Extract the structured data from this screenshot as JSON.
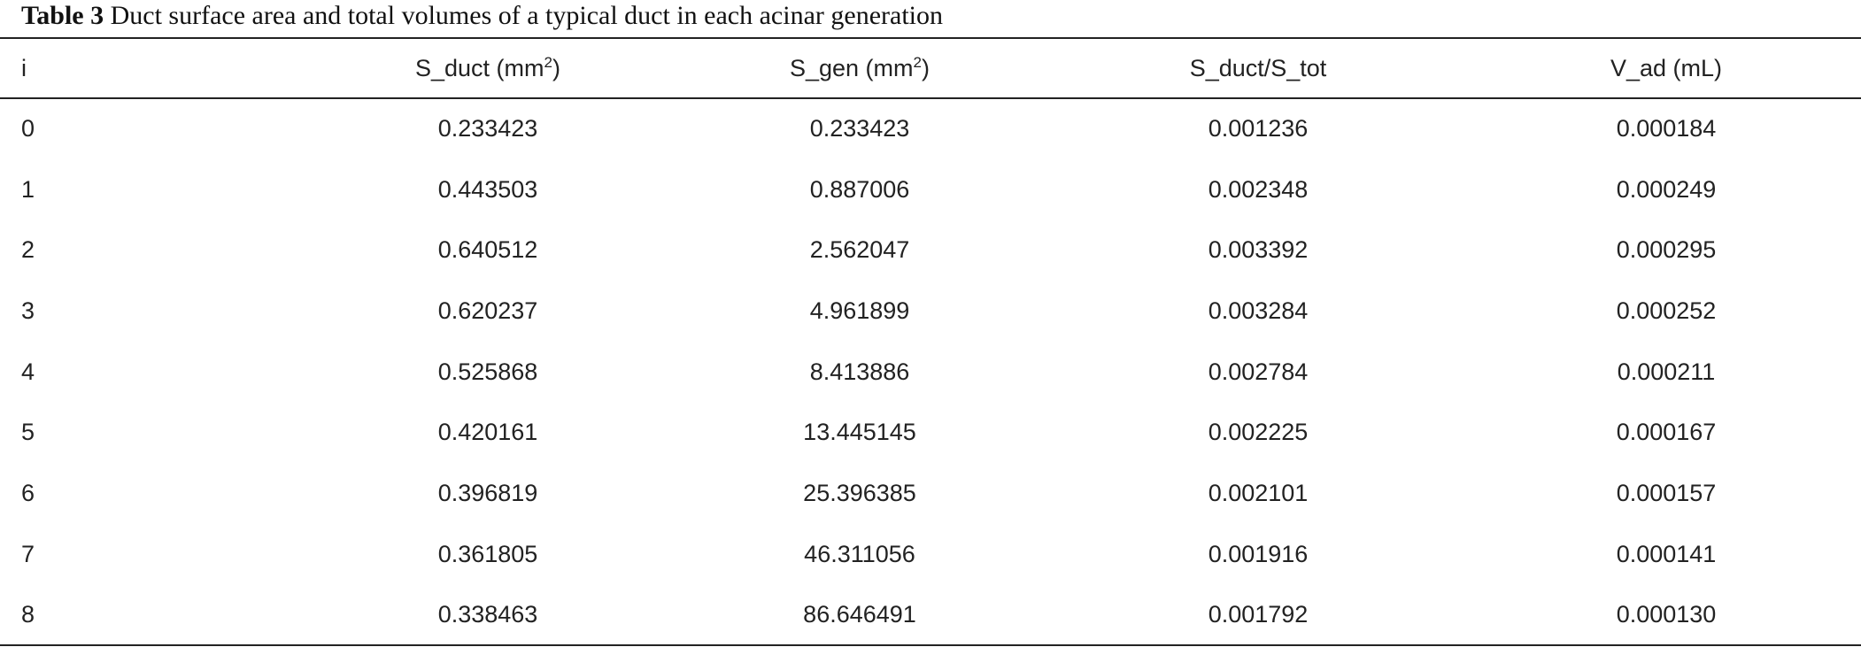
{
  "caption": {
    "label": "Table 3",
    "text": "Duct surface area and total volumes of a typical duct in each acinar generation"
  },
  "table": {
    "headers": [
      "i",
      {
        "base": "S_duct (mm",
        "sup": "2",
        "after": ")"
      },
      {
        "base": "S_gen (mm",
        "sup": "2",
        "after": ")"
      },
      "S_duct/S_tot",
      "V_ad (mL)"
    ],
    "rows": [
      [
        "0",
        "0.233423",
        "0.233423",
        "0.001236",
        "0.000184"
      ],
      [
        "1",
        "0.443503",
        "0.887006",
        "0.002348",
        "0.000249"
      ],
      [
        "2",
        "0.640512",
        "2.562047",
        "0.003392",
        "0.000295"
      ],
      [
        "3",
        "0.620237",
        "4.961899",
        "0.003284",
        "0.000252"
      ],
      [
        "4",
        "0.525868",
        "8.413886",
        "0.002784",
        "0.000211"
      ],
      [
        "5",
        "0.420161",
        "13.445145",
        "0.002225",
        "0.000167"
      ],
      [
        "6",
        "0.396819",
        "25.396385",
        "0.002101",
        "0.000157"
      ],
      [
        "7",
        "0.361805",
        "46.311056",
        "0.001916",
        "0.000141"
      ],
      [
        "8",
        "0.338463",
        "86.646491",
        "0.001792",
        "0.000130"
      ]
    ]
  }
}
